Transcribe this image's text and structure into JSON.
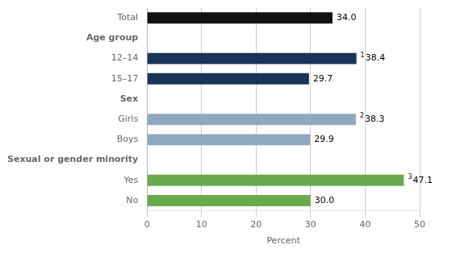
{
  "chart_data": {
    "type": "bar",
    "orientation": "horizontal",
    "categories": [
      "No",
      "Yes",
      "Sexual or gender minority",
      "Boys",
      "Girls",
      "Sex",
      "15–17",
      "12–14",
      "Age group",
      "Total"
    ],
    "values": [
      30.0,
      47.1,
      null,
      29.9,
      38.3,
      null,
      29.7,
      38.4,
      null,
      34.0
    ],
    "value_labels": [
      "30.0",
      "47.1",
      null,
      "29.9",
      "38.3",
      null,
      "29.7",
      "38.4",
      null,
      "34.0"
    ],
    "label_prefixes": [
      null,
      "3",
      null,
      null,
      "2",
      null,
      null,
      "1",
      null,
      null
    ],
    "colors": [
      "#6aaa4f",
      "#6aaa4f",
      null,
      "#8fa8c0",
      "#8fa8c0",
      null,
      "#1a3458",
      "#1a3458",
      null,
      "#111111"
    ],
    "xlabel": "Percent",
    "xlim": [
      0,
      50
    ],
    "xticks": [
      0,
      10,
      20,
      30,
      40,
      50
    ],
    "grid": true,
    "data_labels": true
  }
}
